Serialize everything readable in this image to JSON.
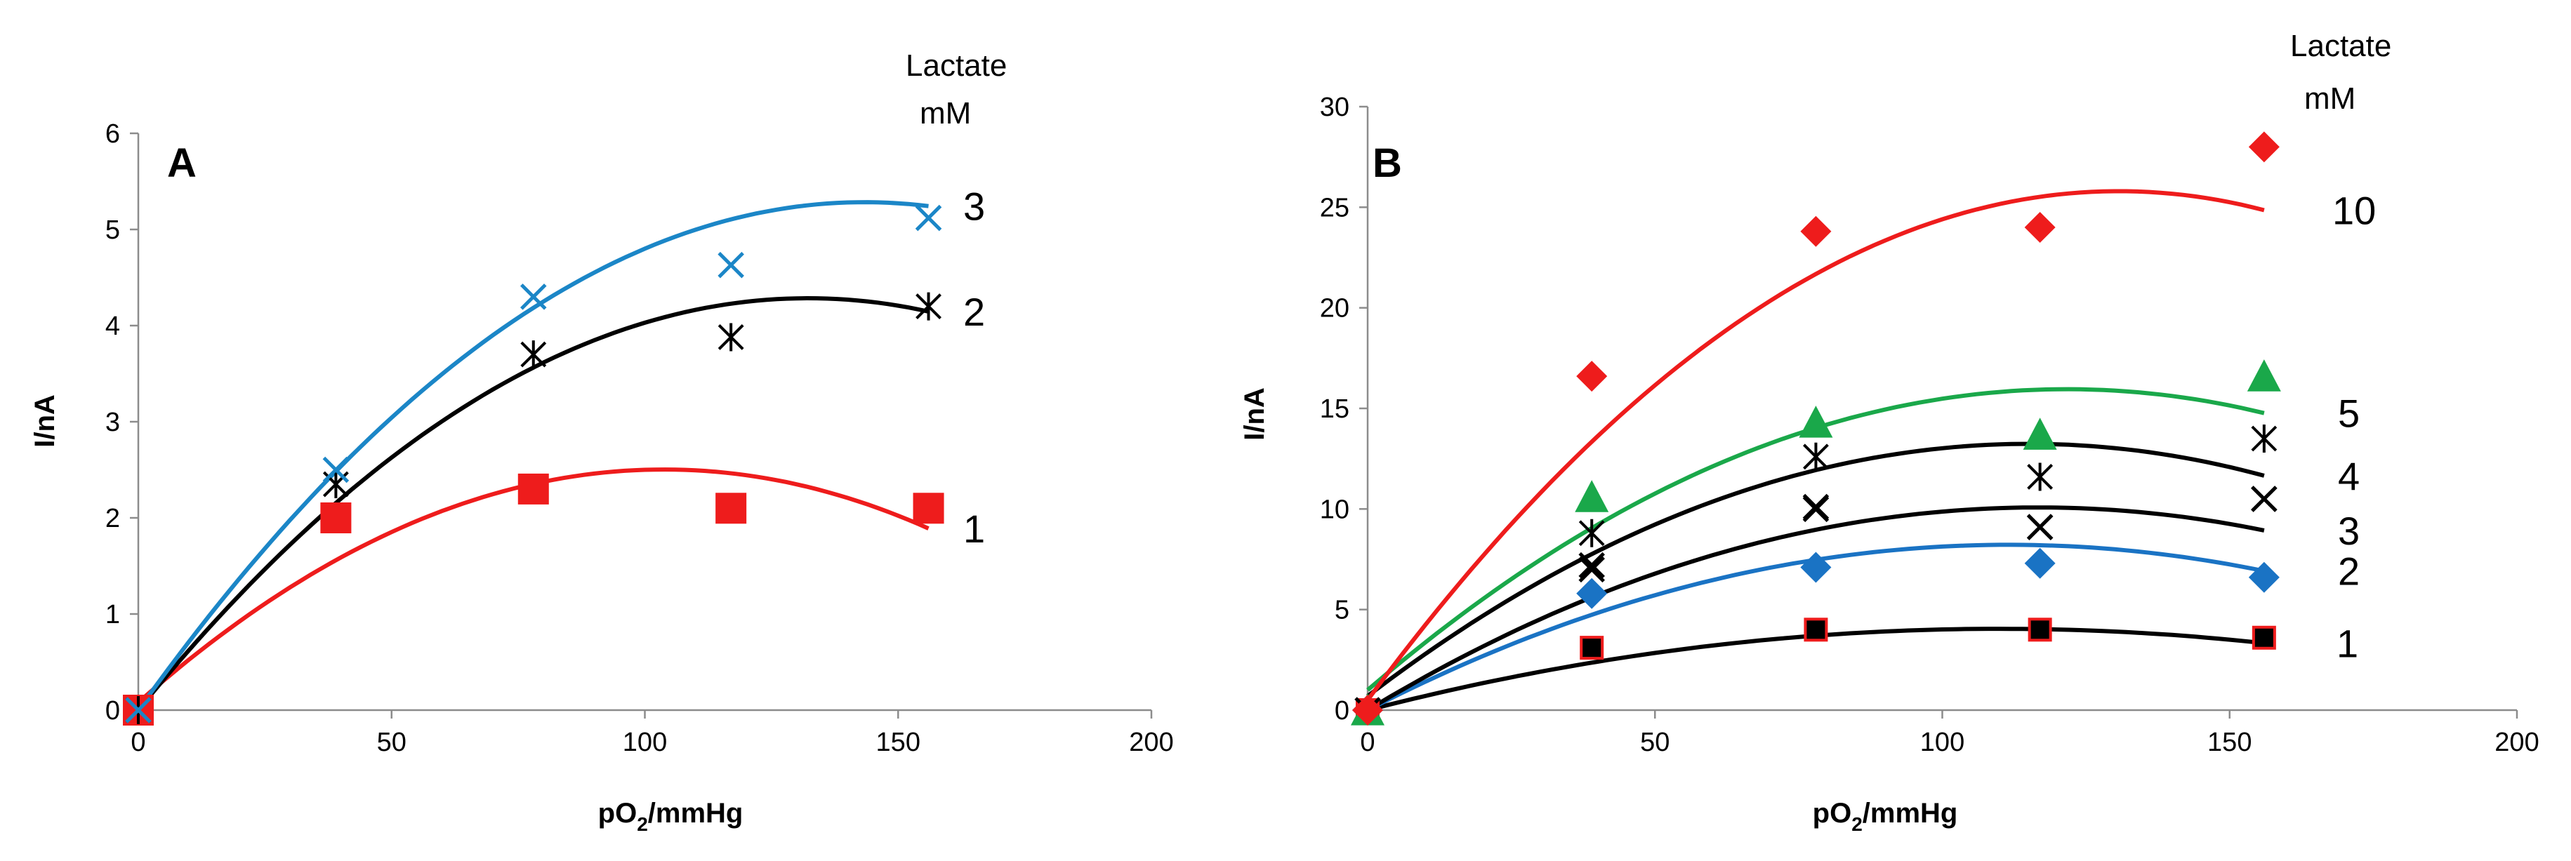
{
  "chart_data": [
    {
      "type": "scatter",
      "panel_label": "A",
      "xlabel_main": "pO",
      "xlabel_sub": "2",
      "xlabel_tail": "/mmHg",
      "ylabel": "I/nA",
      "xlim": [
        0,
        200
      ],
      "ylim": [
        0,
        6
      ],
      "xticks": [
        0,
        50,
        100,
        150,
        200
      ],
      "yticks": [
        0,
        1,
        2,
        3,
        4,
        5,
        6
      ],
      "legend_title_line1": "Lactate",
      "legend_title_line2": "mM",
      "series": [
        {
          "name": "1",
          "label": "1",
          "marker": "square",
          "color": "#ee1c1c",
          "curve_color": "#ee1c1c",
          "x": [
            0,
            39,
            78,
            117,
            156
          ],
          "y": [
            0,
            2.0,
            2.3,
            2.1,
            2.1
          ],
          "fit": [
            -0.000225,
            0.0467,
            0.08
          ]
        },
        {
          "name": "2",
          "label": "2",
          "marker": "asterisk",
          "color": "#000000",
          "curve_color": "#000000",
          "x": [
            0,
            39,
            78,
            117,
            156
          ],
          "y": [
            0,
            2.35,
            3.7,
            3.88,
            4.2
          ],
          "fit": [
            -0.000245,
            0.0648,
            0.0
          ]
        },
        {
          "name": "3",
          "label": "3",
          "marker": "x",
          "color": "#1b86c7",
          "curve_color": "#1b86c7",
          "x": [
            0,
            39,
            78,
            117,
            156
          ],
          "y": [
            0,
            2.5,
            4.3,
            4.63,
            5.12
          ],
          "fit": [
            -0.000257,
            0.0737,
            0.0
          ]
        }
      ]
    },
    {
      "type": "scatter",
      "panel_label": "B",
      "xlabel_main": "pO",
      "xlabel_sub": "2",
      "xlabel_tail": "/mmHg",
      "ylabel": "I/nA",
      "xlim": [
        0,
        200
      ],
      "ylim": [
        0,
        30
      ],
      "xticks": [
        0,
        50,
        100,
        150,
        200
      ],
      "yticks": [
        0,
        5,
        10,
        15,
        20,
        25,
        30
      ],
      "legend_title_line1": "Lactate",
      "legend_title_line2": "mM",
      "series": [
        {
          "name": "1",
          "label": "1",
          "marker": "square-outlined",
          "color": "#000000",
          "edge": "#ee1c1c",
          "curve_color": "#000000",
          "x": [
            0,
            39,
            78,
            117,
            156
          ],
          "y": [
            0,
            3.1,
            4.0,
            4.0,
            3.6
          ],
          "fit": [
            -0.000335,
            0.0736,
            0.0
          ]
        },
        {
          "name": "2",
          "label": "2",
          "marker": "diamond",
          "color": "#1a73c4",
          "curve_color": "#1a73c4",
          "x": [
            0,
            39,
            78,
            117,
            156
          ],
          "y": [
            0,
            5.8,
            7.1,
            7.3,
            6.6
          ],
          "fit": [
            -0.00066,
            0.1473,
            0.0
          ]
        },
        {
          "name": "3",
          "label": "3",
          "marker": "x",
          "color": "#000000",
          "curve_color": "#000000",
          "x": [
            0,
            39,
            78,
            117,
            156,
            39,
            78,
            117,
            156
          ],
          "y": [
            0,
            7.2,
            10.0,
            9.1,
            10.5,
            7.0,
            10.1,
            9.1,
            10.5
          ],
          "fit": [
            -0.00074,
            0.1727,
            0.0
          ]
        },
        {
          "name": "4",
          "label": "4",
          "marker": "asterisk",
          "color": "#000000",
          "curve_color": "#000000",
          "x": [
            39,
            78,
            117,
            156
          ],
          "y": [
            8.8,
            12.6,
            11.6,
            13.5
          ],
          "fit": [
            -0.000946,
            0.2178,
            0.7
          ]
        },
        {
          "name": "5",
          "label": "5",
          "marker": "triangle",
          "color": "#1aa84a",
          "curve_color": "#1aa84a",
          "x": [
            0,
            39,
            78,
            117,
            156
          ],
          "y": [
            0,
            10.6,
            14.3,
            13.7,
            16.6
          ],
          "fit": [
            -0.00101,
            0.2458,
            1.0
          ]
        },
        {
          "name": "10",
          "label": "10",
          "marker": "diamond",
          "color": "#ee1c1c",
          "curve_color": "#ee1c1c",
          "x": [
            0,
            39,
            78,
            117,
            156
          ],
          "y": [
            0,
            16.6,
            23.8,
            24.0,
            28.0
          ],
          "fit": [
            -0.00148,
            0.387,
            0.5
          ]
        }
      ]
    }
  ]
}
